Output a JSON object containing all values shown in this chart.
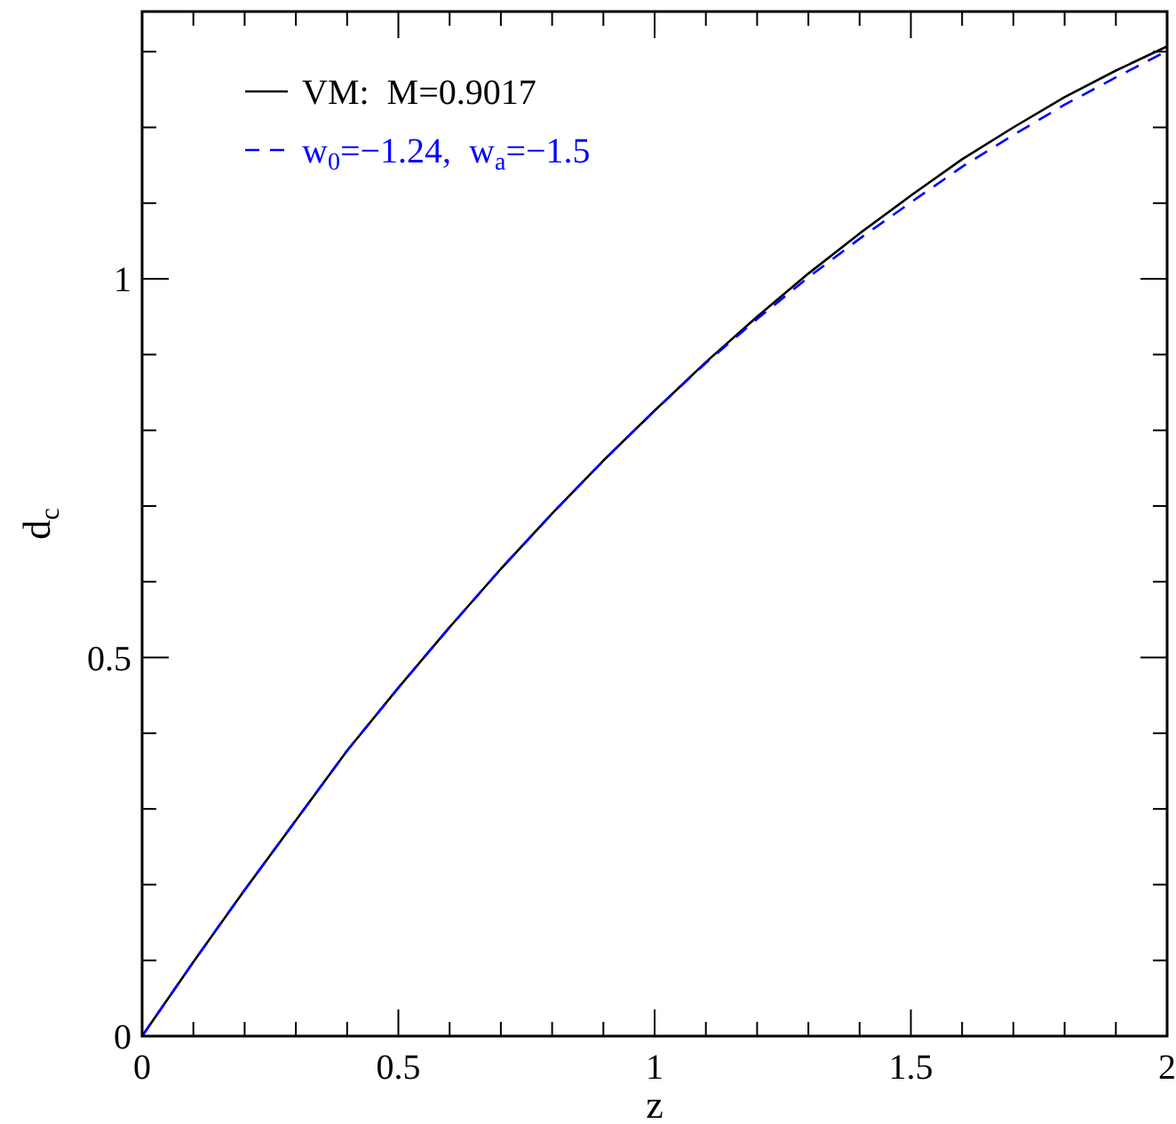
{
  "chart_data": {
    "type": "line",
    "xlabel": "z",
    "ylabel": "d$_{c}$",
    "x": [
      0,
      0.1,
      0.2,
      0.3,
      0.4,
      0.5,
      0.6,
      0.7,
      0.8,
      0.9,
      1.0,
      1.1,
      1.2,
      1.3,
      1.4,
      1.5,
      1.6,
      1.7,
      1.8,
      1.9,
      2.0
    ],
    "series": [
      {
        "name": "VM:  M=0.9017",
        "color": "#000000",
        "line_style": "solid",
        "values": [
          0,
          0.098,
          0.193,
          0.285,
          0.377,
          0.46,
          0.54,
          0.617,
          0.69,
          0.76,
          0.826,
          0.89,
          0.95,
          1.007,
          1.06,
          1.11,
          1.158,
          1.2,
          1.24,
          1.275,
          1.307
        ]
      },
      {
        "name": "w$_{0}$=−1.24,  w$_{a}$=−1.5",
        "color": "#0000ff",
        "line_style": "dashed",
        "values": [
          0,
          0.098,
          0.193,
          0.285,
          0.377,
          0.46,
          0.54,
          0.617,
          0.69,
          0.76,
          0.826,
          0.889,
          0.947,
          1.002,
          1.053,
          1.101,
          1.148,
          1.19,
          1.23,
          1.266,
          1.301
        ]
      }
    ],
    "xlim": [
      0,
      2
    ],
    "ylim": [
      0,
      1.353
    ],
    "xticks": [
      0,
      {
        "value": 0.1,
        "label": null
      },
      {
        "value": 0.2,
        "label": null
      },
      {
        "value": 0.3,
        "label": null
      },
      {
        "value": 0.4,
        "label": null
      },
      0.5,
      {
        "value": 0.6,
        "label": null
      },
      {
        "value": 0.7,
        "label": null
      },
      {
        "value": 0.8,
        "label": null
      },
      {
        "value": 0.9,
        "label": null
      },
      1,
      {
        "value": 1.1,
        "label": null
      },
      {
        "value": 1.2,
        "label": null
      },
      {
        "value": 1.3,
        "label": null
      },
      {
        "value": 1.4,
        "label": null
      },
      1.5,
      {
        "value": 1.6,
        "label": null
      },
      {
        "value": 1.7,
        "label": null
      },
      {
        "value": 1.8,
        "label": null
      },
      {
        "value": 1.9,
        "label": null
      },
      2
    ],
    "yticks": [
      0,
      {
        "value": 0.1,
        "label": null
      },
      {
        "value": 0.2,
        "label": null
      },
      {
        "value": 0.3,
        "label": null
      },
      {
        "value": 0.4,
        "label": null
      },
      0.5,
      {
        "value": 0.6,
        "label": null
      },
      {
        "value": 0.7,
        "label": null
      },
      {
        "value": 0.8,
        "label": null
      },
      {
        "value": 0.9,
        "label": null
      },
      1,
      {
        "value": 1.1,
        "label": null
      },
      {
        "value": 1.2,
        "label": null
      },
      {
        "value": 1.3,
        "label": null
      }
    ],
    "legend": "top left",
    "grid": false,
    "marker": "none"
  }
}
